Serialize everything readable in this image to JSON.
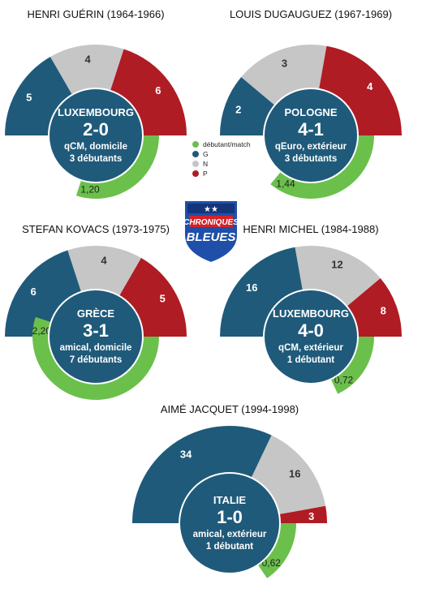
{
  "colors": {
    "G": "#1f5a7a",
    "N": "#c6c6c6",
    "P": "#b01c24",
    "debutants": "#6bc04b",
    "center": "#1f5a7a"
  },
  "legend": {
    "items": [
      {
        "key": "debutants",
        "label": "débutant/match"
      },
      {
        "key": "G",
        "label": "G"
      },
      {
        "key": "N",
        "label": "N"
      },
      {
        "key": "P",
        "label": "P"
      }
    ]
  },
  "logo": {
    "line1": "CHRONIQUES",
    "line2": "BLEUES",
    "stars": "★★",
    "icon": "shield-logo-icon"
  },
  "chart_data": [
    {
      "type": "pie",
      "title": "HENRI GUÉRIN (1964-1966)",
      "categories": [
        "G",
        "N",
        "P"
      ],
      "values": [
        5,
        4,
        6
      ],
      "debutants_per_match": 1.2,
      "debutants_label": "1,20",
      "first_match": {
        "opponent": "LUXEMBOURG",
        "score": "2-0",
        "context": "qCM, domicile",
        "debutants": "3 débutants"
      }
    },
    {
      "type": "pie",
      "title": "LOUIS DUGAUGUEZ (1967-1969)",
      "categories": [
        "G",
        "N",
        "P"
      ],
      "values": [
        2,
        3,
        4
      ],
      "debutants_per_match": 1.44,
      "debutants_label": "1,44",
      "first_match": {
        "opponent": "POLOGNE",
        "score": "4-1",
        "context": "qEuro, extérieur",
        "debutants": "3 débutants"
      }
    },
    {
      "type": "pie",
      "title": "STEFAN KOVACS (1973-1975)",
      "categories": [
        "G",
        "N",
        "P"
      ],
      "values": [
        6,
        4,
        5
      ],
      "debutants_per_match": 2.2,
      "debutants_label": "2,20",
      "first_match": {
        "opponent": "GRÈCE",
        "score": "3-1",
        "context": "amical, domicile",
        "debutants": "7 débutants"
      }
    },
    {
      "type": "pie",
      "title": "HENRI MICHEL (1984-1988)",
      "categories": [
        "G",
        "N",
        "P"
      ],
      "values": [
        16,
        12,
        8
      ],
      "debutants_per_match": 0.72,
      "debutants_label": "0,72",
      "first_match": {
        "opponent": "LUXEMBOURG",
        "score": "4-0",
        "context": "qCM, extérieur",
        "debutants": "1 débutant"
      }
    },
    {
      "type": "pie",
      "title": "AIMÉ JACQUET (1994-1998)",
      "categories": [
        "G",
        "N",
        "P"
      ],
      "values": [
        34,
        16,
        3
      ],
      "debutants_per_match": 0.62,
      "debutants_label": "0,62",
      "first_match": {
        "opponent": "ITALIE",
        "score": "1-0",
        "context": "amical, extérieur",
        "debutants": "1 débutant"
      }
    }
  ]
}
